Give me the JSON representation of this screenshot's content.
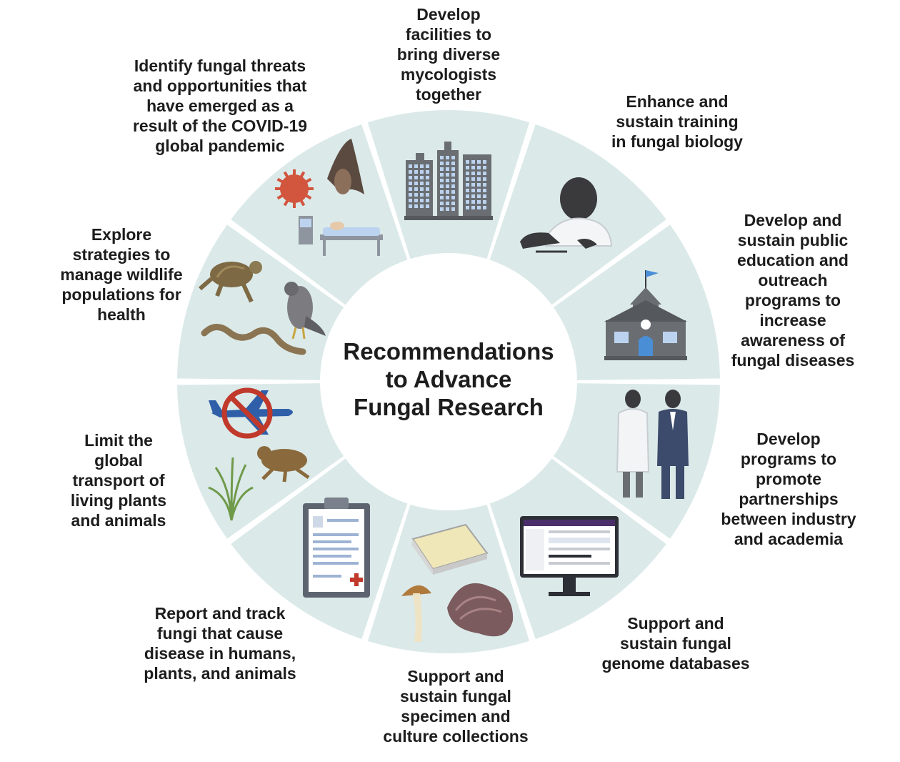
{
  "center_title": "Recommendations\nto Advance\nFungal Research",
  "recommendations": [
    {
      "id": "facilities",
      "text": "Develop\nfacilities to\nbring diverse\nmycologists\ntogether",
      "icon": "buildings-icon"
    },
    {
      "id": "training",
      "text": "Enhance and\nsustain training\nin fungal biology",
      "icon": "student-writing-icon"
    },
    {
      "id": "education",
      "text": "Develop and\nsustain public\neducation and\noutreach\nprograms to\nincrease\nawareness of\nfungal diseases",
      "icon": "schoolhouse-icon"
    },
    {
      "id": "partnerships",
      "text": "Develop\nprograms to\npromote\npartnerships\nbetween industry\nand academia",
      "icon": "scientist-and-businessman-icon"
    },
    {
      "id": "genome-databases",
      "text": "Support and\nsustain fungal\ngenome databases",
      "icon": "computer-monitor-icon"
    },
    {
      "id": "collections",
      "text": "Support and\nsustain fungal\nspecimen and\nculture collections",
      "icon": "well-plate-and-mushroom-icon"
    },
    {
      "id": "report-track",
      "text": "Report and track\nfungi that cause\ndisease in humans,\nplants, and animals",
      "icon": "clipboard-report-icon"
    },
    {
      "id": "limit-transport",
      "text": "Limit the\nglobal\ntransport of\nliving plants\nand animals",
      "icon": "no-airplane-frog-plant-icon"
    },
    {
      "id": "wildlife",
      "text": "Explore\nstrategies to\nmanage wildlife\npopulations for\nhealth",
      "icon": "turtle-falcon-snake-icon"
    },
    {
      "id": "covid",
      "text": "Identify fungal threats\nand opportunities that\nhave emerged as a\nresult of the COVID-19\nglobal pandemic",
      "icon": "virus-bat-hospital-bed-icon"
    }
  ],
  "colors": {
    "segment_fill": "#dbe9e9",
    "segment_gap": "#ffffff",
    "text": "#1d1d1d",
    "building": "#6a6e73",
    "window": "#bcd3ef",
    "skin": "#3a3a3c",
    "ban_red": "#c0392b",
    "plane_blue": "#2f5fa8",
    "frog": "#8a6a3c",
    "plant": "#6f9a4a",
    "mushroom": "#b07a3c",
    "plate": "#efe7b8",
    "clipboard": "#5d6470",
    "paper": "#ffffff",
    "monitor": "#2c2f35",
    "screen_accent": "#4b2f6b",
    "virus": "#d2553e",
    "bat": "#5a4a40",
    "turtle": "#7d6a44",
    "falcon": "#7c7c80",
    "snake": "#8a7452",
    "flag": "#4a8fd6"
  }
}
